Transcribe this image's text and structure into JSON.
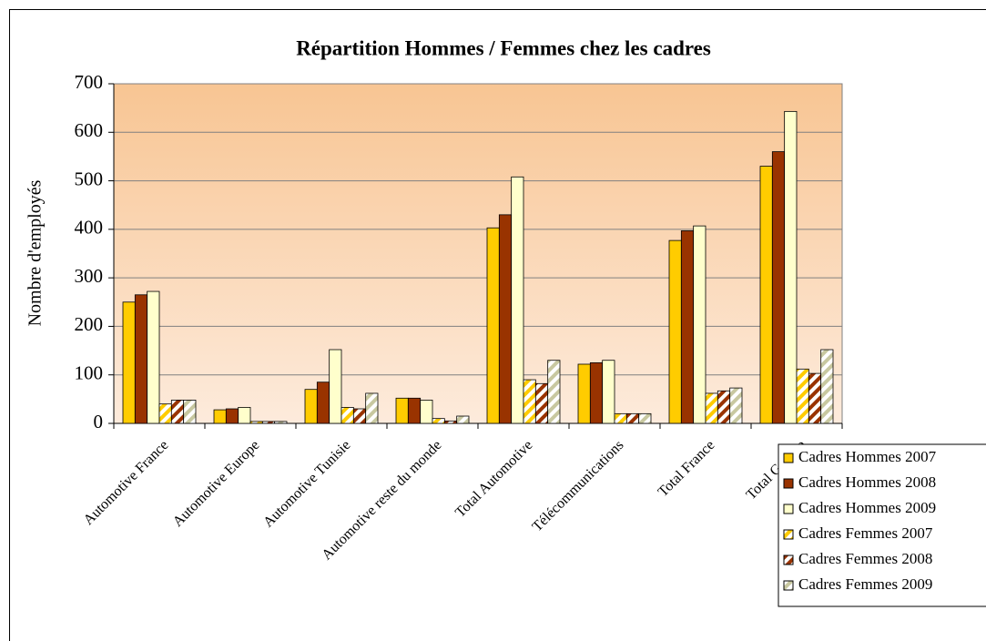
{
  "chart_data": {
    "type": "bar",
    "title": "Répartition Hommes / Femmes chez les cadres",
    "y_label": "Nombre d'employés",
    "categories": [
      "Automotive France",
      "Automotive Europe",
      "Automotive Tunisie",
      "Automotive reste du monde",
      "Total Automotive",
      "Télécommunications",
      "Total France",
      "Total Groupe"
    ],
    "series": [
      {
        "name": "Cadres Hommes 2007",
        "color": "#FFCC00",
        "hatched": false,
        "values": [
          250,
          28,
          70,
          52,
          403,
          122,
          377,
          530
        ]
      },
      {
        "name": "Cadres Hommes 2008",
        "color": "#993300",
        "hatched": false,
        "values": [
          265,
          30,
          85,
          52,
          430,
          125,
          397,
          560
        ]
      },
      {
        "name": "Cadres Hommes 2009",
        "color": "#FFFFCC",
        "hatched": false,
        "values": [
          272,
          33,
          152,
          48,
          508,
          130,
          407,
          643
        ]
      },
      {
        "name": "Cadres Femmes 2007",
        "color": "#FFCC00",
        "hatched": true,
        "values": [
          40,
          4,
          33,
          10,
          90,
          20,
          62,
          112
        ]
      },
      {
        "name": "Cadres Femmes 2008",
        "color": "#993300",
        "hatched": true,
        "values": [
          48,
          4,
          30,
          5,
          82,
          20,
          67,
          103
        ]
      },
      {
        "name": "Cadres Femmes 2009",
        "color": "#C8C8A0",
        "hatched": true,
        "values": [
          48,
          4,
          62,
          15,
          130,
          20,
          73,
          152
        ]
      }
    ],
    "ylim": [
      0,
      700
    ],
    "yticks": [
      0,
      100,
      200,
      300,
      400,
      500,
      600,
      700
    ],
    "grid": true,
    "legend": "right"
  }
}
